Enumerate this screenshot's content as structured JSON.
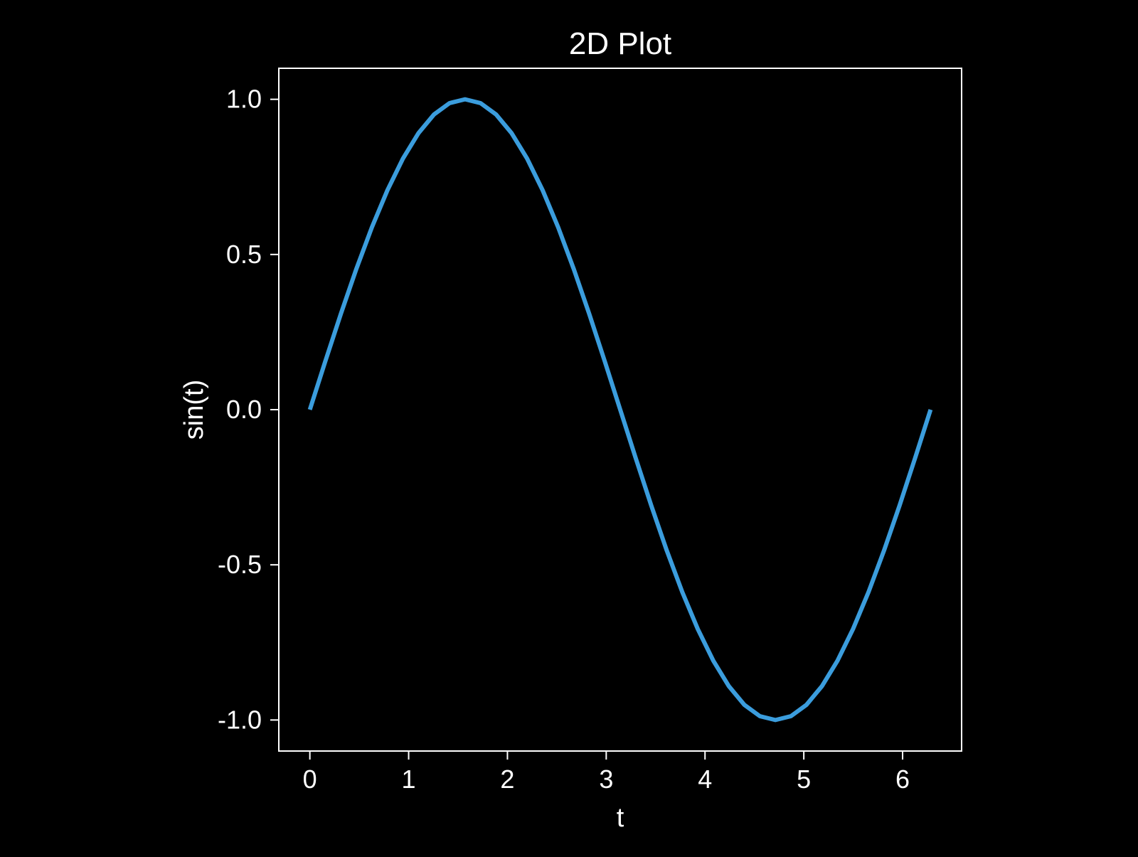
{
  "colors": {
    "background": "#000000",
    "foreground": "#ffffff",
    "line": "#3b9ddd"
  },
  "chart_data": {
    "type": "line",
    "title": "2D Plot",
    "xlabel": "t",
    "ylabel": "sin(t)",
    "xlim": [
      -0.3142,
      6.5973
    ],
    "ylim": [
      -1.1,
      1.1
    ],
    "xticks": [
      0,
      1,
      2,
      3,
      4,
      5,
      6
    ],
    "xtick_labels": [
      "0",
      "1",
      "2",
      "3",
      "4",
      "5",
      "6"
    ],
    "yticks": [
      1.0,
      0.5,
      0.0,
      -0.5,
      -1.0
    ],
    "ytick_labels": [
      "1.0",
      "0.5",
      "0.0",
      "-0.5",
      "-1.0"
    ],
    "grid": false,
    "legend": "none",
    "series": [
      {
        "x": [
          0,
          0.1571,
          0.3142,
          0.4712,
          0.6283,
          0.7854,
          0.9425,
          1.0996,
          1.2566,
          1.4137,
          1.5708,
          1.7279,
          1.885,
          2.042,
          2.1991,
          2.3562,
          2.5133,
          2.6704,
          2.8274,
          2.9845,
          3.1416,
          3.2987,
          3.4558,
          3.6128,
          3.7699,
          3.927,
          4.0841,
          4.2412,
          4.3982,
          4.5553,
          4.7124,
          4.8695,
          5.0265,
          5.1836,
          5.3407,
          5.4978,
          5.6549,
          5.8119,
          5.969,
          6.1261,
          6.2832
        ],
        "y": [
          0,
          0.1564,
          0.309,
          0.454,
          0.5878,
          0.7071,
          0.809,
          0.891,
          0.9511,
          0.9877,
          1,
          0.9877,
          0.9511,
          0.891,
          0.809,
          0.7071,
          0.5878,
          0.454,
          0.309,
          0.1564,
          0,
          -0.1564,
          -0.309,
          -0.454,
          -0.5878,
          -0.7071,
          -0.809,
          -0.891,
          -0.9511,
          -0.9877,
          -1,
          -0.9877,
          -0.9511,
          -0.891,
          -0.809,
          -0.7071,
          -0.5878,
          -0.454,
          -0.309,
          -0.1564,
          0
        ]
      }
    ]
  }
}
